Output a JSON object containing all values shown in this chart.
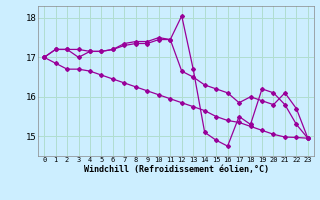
{
  "xlabel": "Windchill (Refroidissement éolien,°C)",
  "background_color": "#cceeff",
  "grid_color": "#b0ddd0",
  "line_color": "#990099",
  "hours": [
    0,
    1,
    2,
    3,
    4,
    5,
    6,
    7,
    8,
    9,
    10,
    11,
    12,
    13,
    14,
    15,
    16,
    17,
    18,
    19,
    20,
    21,
    22,
    23
  ],
  "series": [
    [
      17.0,
      17.2,
      17.2,
      17.2,
      17.15,
      17.15,
      17.2,
      17.35,
      17.4,
      17.4,
      17.5,
      17.45,
      18.05,
      16.7,
      15.1,
      14.9,
      14.75,
      15.5,
      15.3,
      16.2,
      16.1,
      15.8,
      15.3,
      14.95
    ],
    [
      17.0,
      17.2,
      17.2,
      17.0,
      17.15,
      17.15,
      17.2,
      17.3,
      17.35,
      17.35,
      17.45,
      17.45,
      16.65,
      16.5,
      16.3,
      16.2,
      16.1,
      15.85,
      16.0,
      15.9,
      15.8,
      16.1,
      15.7,
      14.95
    ],
    [
      17.0,
      16.85,
      16.7,
      16.7,
      16.65,
      16.55,
      16.45,
      16.35,
      16.25,
      16.15,
      16.05,
      15.95,
      15.85,
      15.75,
      15.65,
      15.5,
      15.4,
      15.35,
      15.25,
      15.15,
      15.05,
      14.98,
      14.97,
      14.95
    ]
  ],
  "ylim": [
    14.5,
    18.3
  ],
  "yticks": [
    15,
    16,
    17,
    18
  ],
  "xticks": [
    0,
    1,
    2,
    3,
    4,
    5,
    6,
    7,
    8,
    9,
    10,
    11,
    12,
    13,
    14,
    15,
    16,
    17,
    18,
    19,
    20,
    21,
    22,
    23
  ],
  "marker": "D",
  "marker_size": 2.0,
  "line_width": 0.9
}
